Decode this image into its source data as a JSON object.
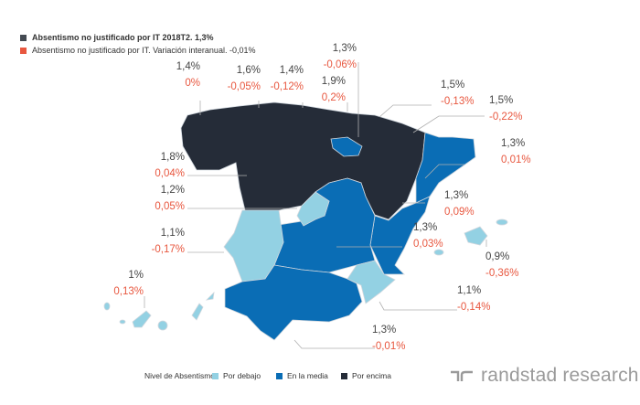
{
  "legend_top": [
    {
      "label": "Absentismo no justificado por IT 2018T2. 1,3%",
      "color": "#444a52"
    },
    {
      "label": "Absentismo no justificado por IT. Variación interanual. -0,01%",
      "color": "#e8573f"
    }
  ],
  "regions": [
    {
      "name": "galicia",
      "value": "1,4%",
      "change": "0%"
    },
    {
      "name": "asturias",
      "value": "1,6%",
      "change": "-0,05%"
    },
    {
      "name": "cantabria",
      "value": "1,4%",
      "change": "-0,12%"
    },
    {
      "name": "pais-vasco",
      "value": "1,9%",
      "change": "0,2%"
    },
    {
      "name": "la-rioja",
      "value": "1,3%",
      "change": "-0,06%"
    },
    {
      "name": "navarra",
      "value": "1,5%",
      "change": "-0,13%"
    },
    {
      "name": "aragon",
      "value": "1,5%",
      "change": "-0,22%"
    },
    {
      "name": "cataluna",
      "value": "1,3%",
      "change": "0,01%"
    },
    {
      "name": "castilla-y-leon",
      "value": "1,8%",
      "change": "0,04%"
    },
    {
      "name": "madrid",
      "value": "1,2%",
      "change": "0,05%"
    },
    {
      "name": "valencia",
      "value": "1,3%",
      "change": "0,09%"
    },
    {
      "name": "castilla-la-mancha",
      "value": "1,3%",
      "change": "0,03%"
    },
    {
      "name": "extremadura",
      "value": "1,1%",
      "change": "-0,17%"
    },
    {
      "name": "baleares",
      "value": "0,9%",
      "change": "-0,36%"
    },
    {
      "name": "canarias",
      "value": "1%",
      "change": "0,13%"
    },
    {
      "name": "murcia",
      "value": "1,1%",
      "change": "-0,14%"
    },
    {
      "name": "andalucia",
      "value": "1,3%",
      "change": "-0,01%"
    }
  ],
  "legend_bottom": {
    "title": "Nivel de Absentismo",
    "items": [
      {
        "label": "Por debajo",
        "color": "#93d1e3"
      },
      {
        "label": "En la media",
        "color": "#0a6db5"
      },
      {
        "label": "Por encima",
        "color": "#252c38"
      }
    ]
  },
  "brand": "randstad research"
}
